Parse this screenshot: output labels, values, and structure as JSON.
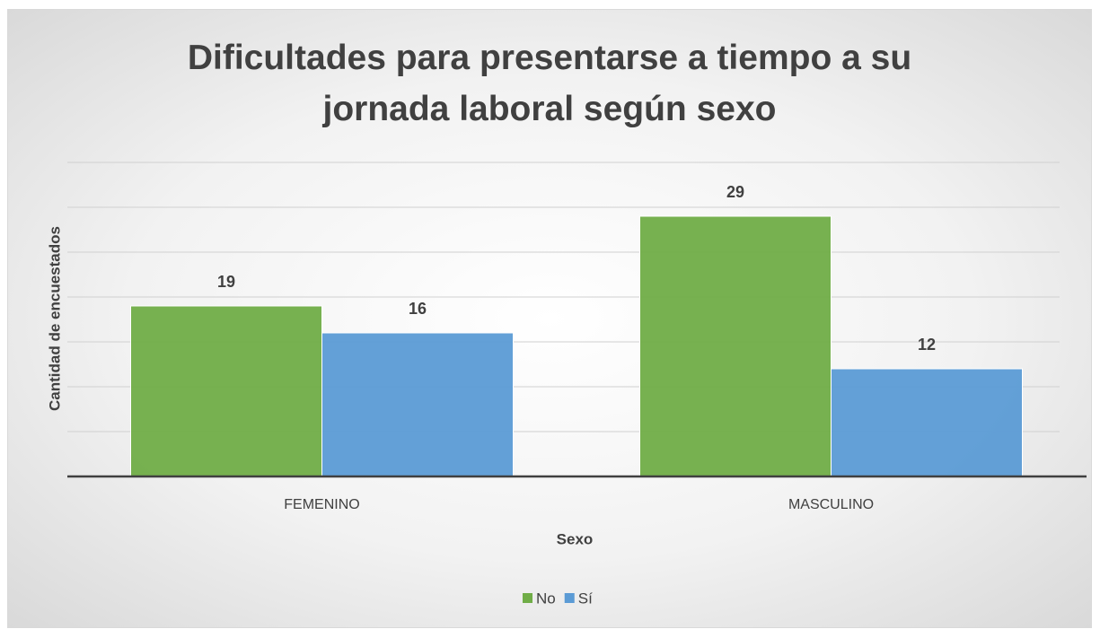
{
  "chart_data": {
    "type": "bar",
    "title": "Dificultades para presentarse a tiempo a su jornada laboral según sexo",
    "x_label": "Sexo",
    "y_label": "Cantidad de encuestados",
    "categories": [
      "FEMENINO",
      "MASCULINO"
    ],
    "series": [
      {
        "name": "No",
        "color": "#70ad47",
        "values": [
          19,
          29
        ]
      },
      {
        "name": "Sí",
        "color": "#5b9bd5",
        "values": [
          16,
          12
        ]
      }
    ],
    "ylim": [
      0,
      35
    ],
    "yticks": [
      0,
      5,
      10,
      15,
      20,
      25,
      30,
      35
    ],
    "grid": true,
    "show_ytick_labels": false,
    "legend": "bottom"
  }
}
